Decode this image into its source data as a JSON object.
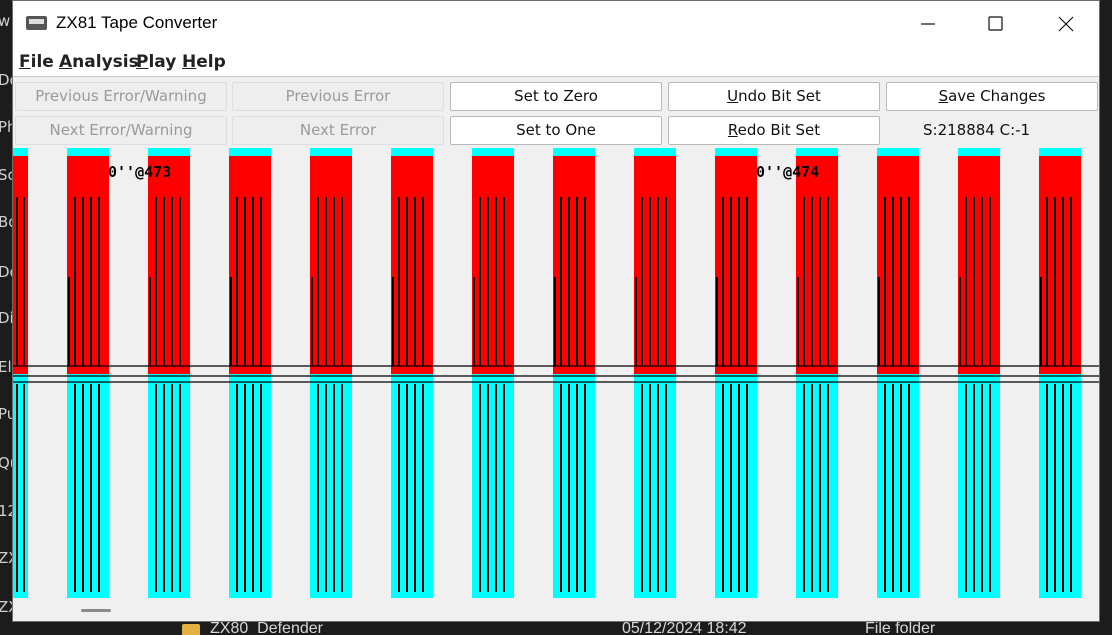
{
  "window": {
    "title": "ZX81 Tape Converter"
  },
  "menu": [
    "File",
    "Analysis",
    "Play",
    "Help"
  ],
  "toolbar": {
    "rows": [
      [
        "Previous Error/Warning",
        "Previous Error",
        "Set to Zero",
        "Undo Bit Set",
        "Save Changes"
      ],
      [
        "Next Error/Warning",
        "Next Error",
        "Set to One",
        "Redo Bit Set"
      ]
    ],
    "status": "S:218884 C:-1"
  },
  "waveform": {
    "markers": [
      "0''@473",
      "0''@474"
    ]
  },
  "background": {
    "sidebar": [
      "w",
      "Do",
      "Ph",
      "Sc",
      "Bo",
      "Do",
      "Di",
      "Ele",
      "Pu",
      "Qu",
      "12",
      "ZX",
      "ZX"
    ],
    "file_row": {
      "name": "ZX80_Defender",
      "modified": "05/12/2024 18:42",
      "type": "File folder"
    }
  }
}
